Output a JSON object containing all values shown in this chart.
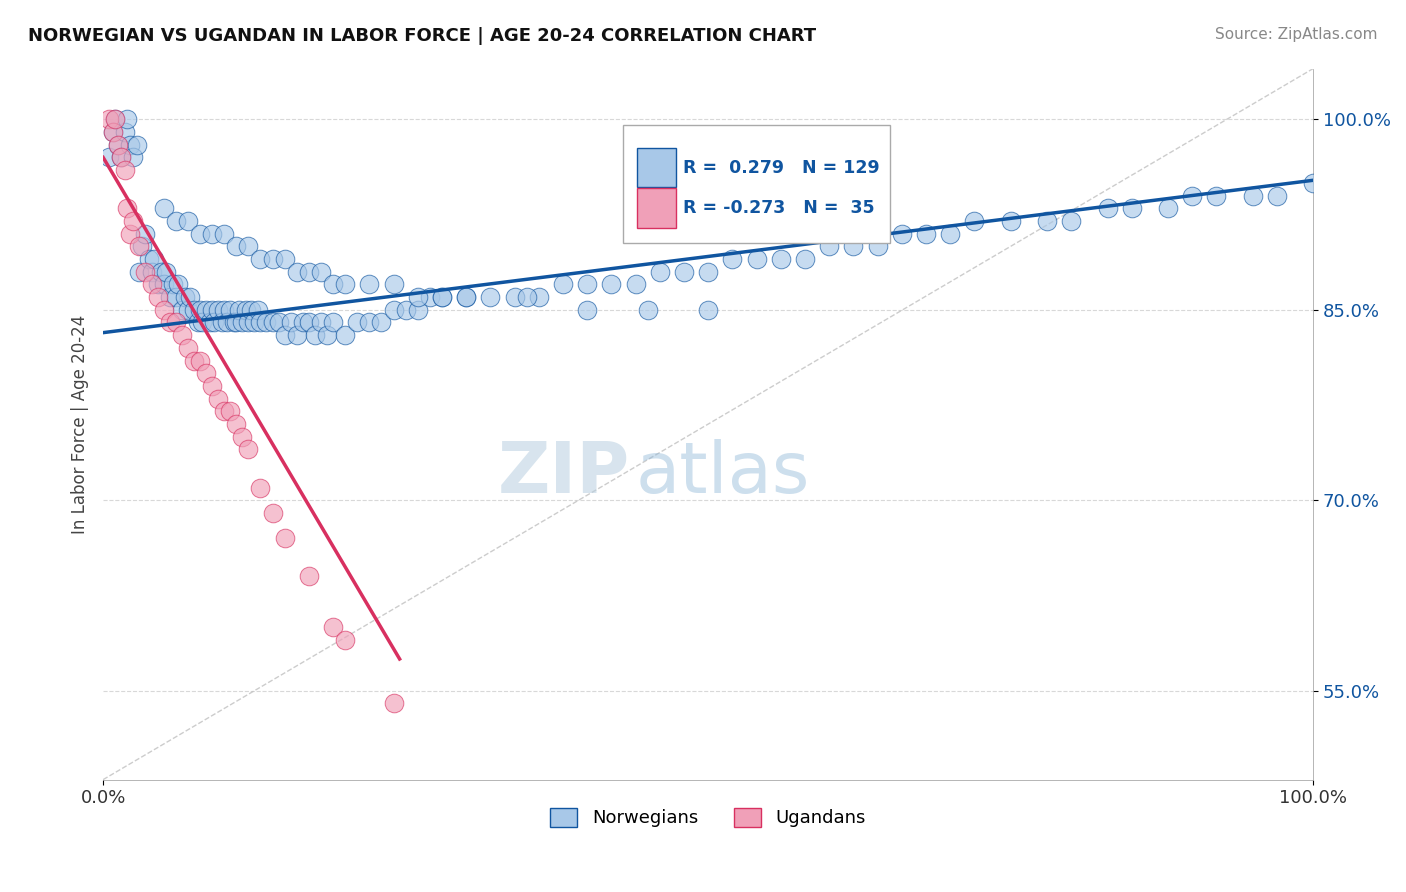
{
  "title": "NORWEGIAN VS UGANDAN IN LABOR FORCE | AGE 20-24 CORRELATION CHART",
  "source": "Source: ZipAtlas.com",
  "ylabel": "In Labor Force | Age 20-24",
  "xlim": [
    0.0,
    1.0
  ],
  "ylim": [
    0.48,
    1.04
  ],
  "yticks": [
    0.55,
    0.7,
    0.85,
    1.0
  ],
  "ytick_labels": [
    "55.0%",
    "70.0%",
    "85.0%",
    "100.0%"
  ],
  "xtick_labels": [
    "0.0%",
    "100.0%"
  ],
  "norwegian_R": 0.279,
  "norwegian_N": 129,
  "ugandan_R": -0.273,
  "ugandan_N": 35,
  "norwegian_color": "#a8c8e8",
  "ugandan_color": "#f0a0b8",
  "norwegian_line_color": "#1055a0",
  "ugandan_line_color": "#d83060",
  "diagonal_color": "#c0c0c0",
  "background_color": "#ffffff",
  "watermark_zip": "ZIP",
  "watermark_atlas": "atlas",
  "nor_trend_x0": 0.0,
  "nor_trend_y0": 0.832,
  "nor_trend_x1": 1.0,
  "nor_trend_y1": 0.952,
  "uga_trend_x0": 0.0,
  "uga_trend_y0": 0.97,
  "uga_trend_x1": 0.245,
  "uga_trend_y1": 0.575,
  "norwegian_x": [
    0.005,
    0.008,
    0.01,
    0.012,
    0.015,
    0.018,
    0.02,
    0.022,
    0.025,
    0.028,
    0.03,
    0.032,
    0.035,
    0.038,
    0.04,
    0.042,
    0.045,
    0.048,
    0.05,
    0.052,
    0.055,
    0.058,
    0.06,
    0.062,
    0.065,
    0.068,
    0.07,
    0.072,
    0.075,
    0.078,
    0.08,
    0.082,
    0.085,
    0.088,
    0.09,
    0.092,
    0.095,
    0.098,
    0.1,
    0.102,
    0.105,
    0.108,
    0.11,
    0.112,
    0.115,
    0.118,
    0.12,
    0.122,
    0.125,
    0.128,
    0.13,
    0.135,
    0.14,
    0.145,
    0.15,
    0.155,
    0.16,
    0.165,
    0.17,
    0.175,
    0.18,
    0.185,
    0.19,
    0.2,
    0.21,
    0.22,
    0.23,
    0.24,
    0.25,
    0.26,
    0.27,
    0.28,
    0.3,
    0.32,
    0.34,
    0.36,
    0.38,
    0.4,
    0.42,
    0.44,
    0.46,
    0.48,
    0.5,
    0.52,
    0.54,
    0.56,
    0.58,
    0.6,
    0.62,
    0.64,
    0.66,
    0.68,
    0.7,
    0.72,
    0.75,
    0.78,
    0.8,
    0.83,
    0.85,
    0.88,
    0.9,
    0.92,
    0.95,
    0.97,
    1.0,
    0.05,
    0.06,
    0.07,
    0.08,
    0.09,
    0.1,
    0.11,
    0.12,
    0.13,
    0.14,
    0.15,
    0.16,
    0.17,
    0.18,
    0.19,
    0.2,
    0.22,
    0.24,
    0.26,
    0.28,
    0.3,
    0.35,
    0.4,
    0.45,
    0.5
  ],
  "norwegian_y": [
    0.97,
    0.99,
    1.0,
    0.98,
    0.97,
    0.99,
    1.0,
    0.98,
    0.97,
    0.98,
    0.88,
    0.9,
    0.91,
    0.89,
    0.88,
    0.89,
    0.87,
    0.88,
    0.87,
    0.88,
    0.86,
    0.87,
    0.86,
    0.87,
    0.85,
    0.86,
    0.85,
    0.86,
    0.85,
    0.84,
    0.85,
    0.84,
    0.85,
    0.84,
    0.85,
    0.84,
    0.85,
    0.84,
    0.85,
    0.84,
    0.85,
    0.84,
    0.84,
    0.85,
    0.84,
    0.85,
    0.84,
    0.85,
    0.84,
    0.85,
    0.84,
    0.84,
    0.84,
    0.84,
    0.83,
    0.84,
    0.83,
    0.84,
    0.84,
    0.83,
    0.84,
    0.83,
    0.84,
    0.83,
    0.84,
    0.84,
    0.84,
    0.85,
    0.85,
    0.85,
    0.86,
    0.86,
    0.86,
    0.86,
    0.86,
    0.86,
    0.87,
    0.87,
    0.87,
    0.87,
    0.88,
    0.88,
    0.88,
    0.89,
    0.89,
    0.89,
    0.89,
    0.9,
    0.9,
    0.9,
    0.91,
    0.91,
    0.91,
    0.92,
    0.92,
    0.92,
    0.92,
    0.93,
    0.93,
    0.93,
    0.94,
    0.94,
    0.94,
    0.94,
    0.95,
    0.93,
    0.92,
    0.92,
    0.91,
    0.91,
    0.91,
    0.9,
    0.9,
    0.89,
    0.89,
    0.89,
    0.88,
    0.88,
    0.88,
    0.87,
    0.87,
    0.87,
    0.87,
    0.86,
    0.86,
    0.86,
    0.86,
    0.85,
    0.85,
    0.85
  ],
  "ugandan_x": [
    0.005,
    0.008,
    0.01,
    0.012,
    0.015,
    0.018,
    0.02,
    0.022,
    0.025,
    0.03,
    0.035,
    0.04,
    0.045,
    0.05,
    0.055,
    0.06,
    0.065,
    0.07,
    0.075,
    0.08,
    0.085,
    0.09,
    0.095,
    0.1,
    0.105,
    0.11,
    0.115,
    0.12,
    0.13,
    0.14,
    0.15,
    0.17,
    0.19,
    0.2,
    0.24
  ],
  "ugandan_y": [
    1.0,
    0.99,
    1.0,
    0.98,
    0.97,
    0.96,
    0.93,
    0.91,
    0.92,
    0.9,
    0.88,
    0.87,
    0.86,
    0.85,
    0.84,
    0.84,
    0.83,
    0.82,
    0.81,
    0.81,
    0.8,
    0.79,
    0.78,
    0.77,
    0.77,
    0.76,
    0.75,
    0.74,
    0.71,
    0.69,
    0.67,
    0.64,
    0.6,
    0.59,
    0.54
  ]
}
